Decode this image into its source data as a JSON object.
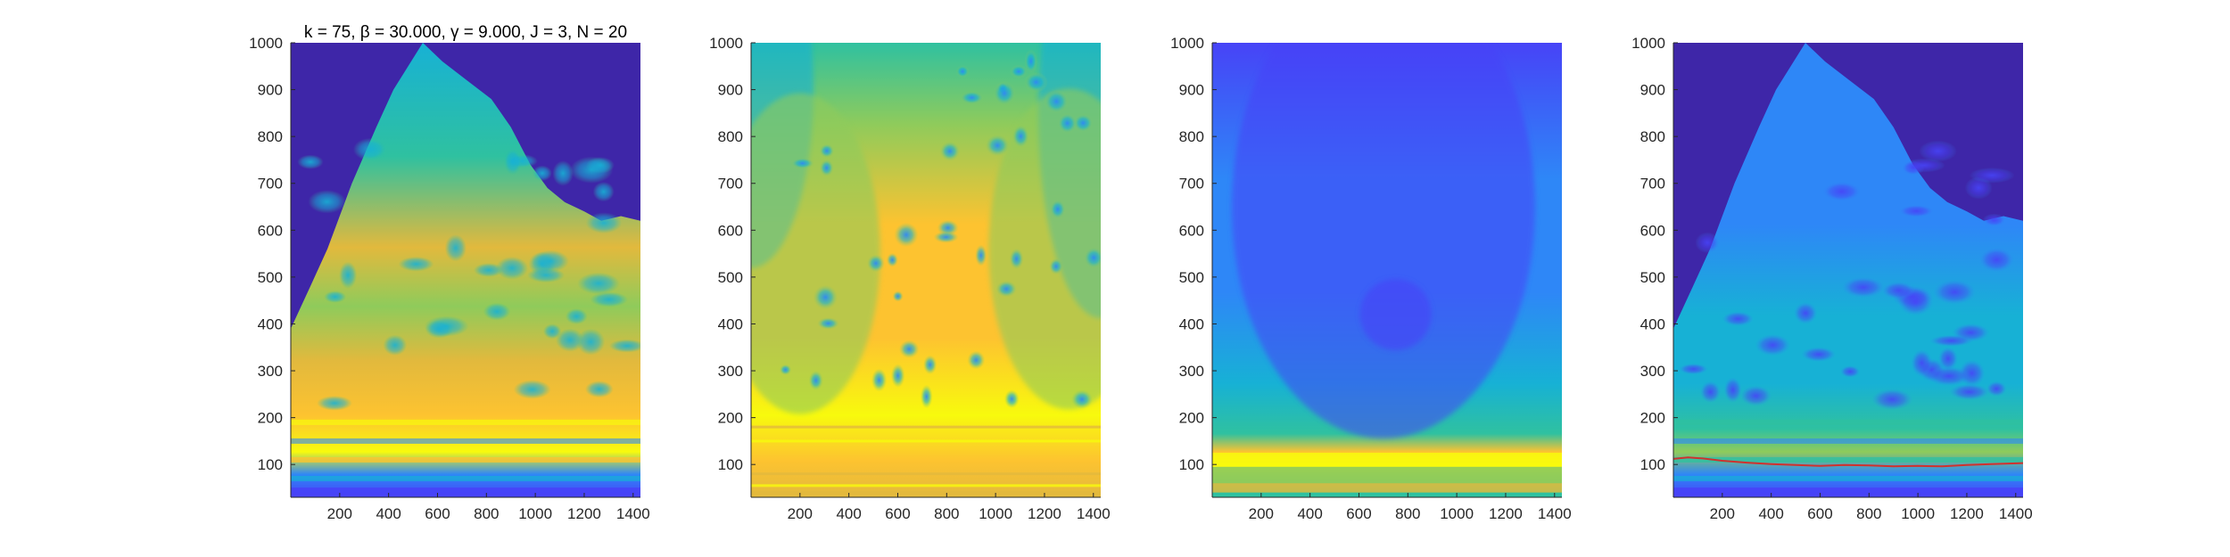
{
  "colormap": [
    "#3e26a8",
    "#4743f7",
    "#2e87f7",
    "#17b1d5",
    "#2fc1a0",
    "#8fcb5b",
    "#e2b93d",
    "#fdc330",
    "#f8fa0d"
  ],
  "chart_data": [
    {
      "type": "heatmap",
      "title": "k = 75, β = 30.000, γ = 9.000, J = 3, N = 20",
      "xlabel": "",
      "ylabel": "",
      "xlim": [
        0,
        1430
      ],
      "ylim": [
        30,
        1000
      ],
      "x_ticks": [
        200,
        400,
        600,
        800,
        1000,
        1200,
        1400
      ],
      "y_ticks": [
        100,
        200,
        300,
        400,
        500,
        600,
        700,
        800,
        900,
        1000
      ],
      "x_tick_labels": [
        "200",
        "400",
        "600",
        "800",
        "1000",
        "1200",
        "1400"
      ],
      "y_tick_labels": [
        "100",
        "200",
        "300",
        "400",
        "500",
        "600",
        "700",
        "800",
        "900",
        "1000"
      ],
      "colormap": "parula",
      "pattern": "spectrogram",
      "envelope_top": [
        [
          0,
          390
        ],
        [
          80,
          480
        ],
        [
          150,
          560
        ],
        [
          250,
          700
        ],
        [
          350,
          820
        ],
        [
          420,
          900
        ],
        [
          480,
          950
        ],
        [
          540,
          1000
        ],
        [
          620,
          960
        ],
        [
          720,
          920
        ],
        [
          820,
          880
        ],
        [
          900,
          820
        ],
        [
          980,
          740
        ],
        [
          1050,
          690
        ],
        [
          1120,
          660
        ],
        [
          1200,
          640
        ],
        [
          1270,
          620
        ],
        [
          1350,
          630
        ],
        [
          1430,
          620
        ]
      ],
      "red_trace": []
    },
    {
      "type": "heatmap",
      "title": "",
      "xlabel": "",
      "ylabel": "",
      "xlim": [
        0,
        1430
      ],
      "ylim": [
        30,
        1000
      ],
      "x_ticks": [
        200,
        400,
        600,
        800,
        1000,
        1200,
        1400
      ],
      "y_ticks": [
        100,
        200,
        300,
        400,
        500,
        600,
        700,
        800,
        900,
        1000
      ],
      "x_tick_labels": [
        "200",
        "400",
        "600",
        "800",
        "1000",
        "1200",
        "1400"
      ],
      "y_tick_labels": [
        "100",
        "200",
        "300",
        "400",
        "500",
        "600",
        "700",
        "800",
        "900",
        "1000"
      ],
      "colormap": "parula",
      "pattern": "smooth",
      "envelope_top": [],
      "red_trace": []
    },
    {
      "type": "heatmap",
      "title": "",
      "xlabel": "",
      "ylabel": "",
      "xlim": [
        0,
        1430
      ],
      "ylim": [
        30,
        1000
      ],
      "x_ticks": [
        200,
        400,
        600,
        800,
        1000,
        1200,
        1400
      ],
      "y_ticks": [
        100,
        200,
        300,
        400,
        500,
        600,
        700,
        800,
        900,
        1000
      ],
      "x_tick_labels": [
        "200",
        "400",
        "600",
        "800",
        "1000",
        "1200",
        "1400"
      ],
      "y_tick_labels": [
        "100",
        "200",
        "300",
        "400",
        "500",
        "600",
        "700",
        "800",
        "900",
        "1000"
      ],
      "colormap": "parula",
      "pattern": "lowband",
      "envelope_top": [],
      "red_trace": []
    },
    {
      "type": "heatmap",
      "title": "",
      "xlabel": "",
      "ylabel": "",
      "xlim": [
        0,
        1430
      ],
      "ylim": [
        30,
        1000
      ],
      "x_ticks": [
        200,
        400,
        600,
        800,
        1000,
        1200,
        1400
      ],
      "y_ticks": [
        100,
        200,
        300,
        400,
        500,
        600,
        700,
        800,
        900,
        1000
      ],
      "x_tick_labels": [
        "200",
        "400",
        "600",
        "800",
        "1000",
        "1200",
        "1400"
      ],
      "y_tick_labels": [
        "100",
        "200",
        "300",
        "400",
        "500",
        "600",
        "700",
        "800",
        "900",
        "1000"
      ],
      "colormap": "parula",
      "pattern": "spectrogram-dim",
      "envelope_top": [
        [
          0,
          390
        ],
        [
          80,
          480
        ],
        [
          150,
          560
        ],
        [
          250,
          700
        ],
        [
          350,
          820
        ],
        [
          420,
          900
        ],
        [
          480,
          950
        ],
        [
          540,
          1000
        ],
        [
          620,
          960
        ],
        [
          720,
          920
        ],
        [
          820,
          880
        ],
        [
          900,
          820
        ],
        [
          980,
          740
        ],
        [
          1050,
          690
        ],
        [
          1120,
          660
        ],
        [
          1200,
          640
        ],
        [
          1270,
          620
        ],
        [
          1350,
          630
        ],
        [
          1430,
          620
        ]
      ],
      "red_trace": [
        [
          0,
          112
        ],
        [
          60,
          115
        ],
        [
          120,
          113
        ],
        [
          200,
          108
        ],
        [
          300,
          104
        ],
        [
          400,
          101
        ],
        [
          500,
          99
        ],
        [
          600,
          97
        ],
        [
          700,
          99
        ],
        [
          800,
          98
        ],
        [
          900,
          96
        ],
        [
          1000,
          97
        ],
        [
          1100,
          96
        ],
        [
          1200,
          99
        ],
        [
          1300,
          101
        ],
        [
          1430,
          103
        ]
      ]
    }
  ]
}
